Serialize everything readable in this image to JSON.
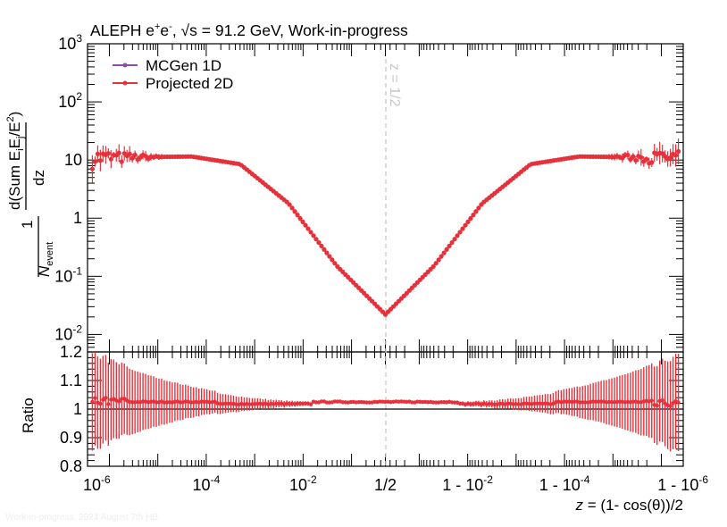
{
  "header": {
    "title_main": "ALEPH e",
    "title_plus": "+",
    "title_e2": "e",
    "title_minus": "-",
    "title_rest": ", √s = 91.2 GeV, Work-in-progress"
  },
  "footer": {
    "watermark": "Work-in-progress, 2024 August 7th HB"
  },
  "chart_data": [
    {
      "type": "scatter",
      "title": "ALEPH e+e-, √s = 91.2 GeV, Work-in-progress",
      "xlabel": "z = (1- cos(θ))/2",
      "ylabel": "1/N_event d(Sum E_iE_j/E^2)/dz",
      "yscale": "log",
      "ylim": [
        0.005,
        1000
      ],
      "xscale": "symmetric-log (log z below 1/2, log(1-z) above 1/2)",
      "xlim_log10_z": [
        -6.15,
        6.15
      ],
      "x_tick_labels": [
        "10^-6",
        "10^-4",
        "10^-2",
        "1/2",
        "1 - 10^-2",
        "1 - 10^-4",
        "1 - 10^-6"
      ],
      "y_tick_labels": [
        "10^-2",
        "10^-1",
        "1",
        "10",
        "10^2",
        "10^3"
      ],
      "legend": {
        "position": "top-left",
        "entries": [
          "MCGen 1D",
          "Projected 2D"
        ]
      },
      "annotation": {
        "text": "z = 1/2",
        "style": "dashed vertical line at z = 1/2"
      },
      "series": [
        {
          "name": "Projected 2D",
          "color": "#e8303a",
          "shape_description": "Plateau near 11 at both ends, falling to a minimum of about 0.022 at z = 1/2",
          "plateau_value": 11.5,
          "minimum_value": 0.022,
          "minimum_at": "z = 1/2",
          "key_points_log10z": [
            [
              -6,
              11
            ],
            [
              -4,
              11.5
            ],
            [
              -3,
              8.5
            ],
            [
              -2,
              1.8
            ],
            [
              -1,
              0.15
            ],
            [
              0,
              0.022
            ],
            [
              1,
              0.15
            ],
            [
              2,
              1.8
            ],
            [
              3,
              8.5
            ],
            [
              4,
              11.5
            ],
            [
              6,
              11
            ]
          ]
        },
        {
          "name": "MCGen 1D",
          "color": "#8a4fa0",
          "shape_description": "Overlaps the Projected 2D points"
        }
      ]
    },
    {
      "type": "scatter",
      "title": "",
      "xlabel": "z = (1- cos(θ))/2",
      "ylabel": "Ratio",
      "ylim": [
        0.8,
        1.2
      ],
      "y_tick_labels": [
        "0.8",
        "0.9",
        "1",
        "1.1",
        "1.2"
      ],
      "reference_line": 1.0,
      "series": [
        {
          "name": "Projected 2D / MCGen 1D",
          "color": "#e8303a",
          "central_value_approx": 1.025,
          "error_bars": "about ±0.15 at the extremes, shrinking to about ±0.005 near z = 1/2"
        }
      ]
    }
  ]
}
